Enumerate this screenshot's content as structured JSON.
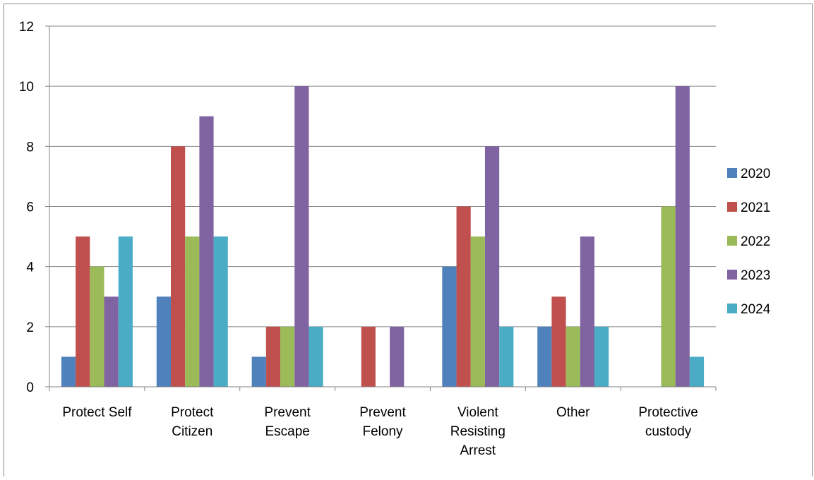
{
  "chart_data": {
    "type": "bar",
    "title": "",
    "xlabel": "",
    "ylabel": "",
    "categories": [
      [
        "Protect Self"
      ],
      [
        "Protect",
        "Citizen"
      ],
      [
        "Prevent",
        "Escape"
      ],
      [
        "Prevent",
        "Felony"
      ],
      [
        "Violent",
        "Resisting",
        "Arrest"
      ],
      [
        "Other"
      ],
      [
        "Protective",
        "custody"
      ]
    ],
    "series": [
      {
        "name": "2020",
        "color": "#4F81BD",
        "values": [
          1,
          3,
          1,
          0,
          4,
          2,
          0
        ]
      },
      {
        "name": "2021",
        "color": "#C0504D",
        "values": [
          5,
          8,
          2,
          2,
          6,
          3,
          0
        ]
      },
      {
        "name": "2022",
        "color": "#9BBB59",
        "values": [
          4,
          5,
          2,
          0,
          5,
          2,
          6
        ]
      },
      {
        "name": "2023",
        "color": "#8064A2",
        "values": [
          3,
          9,
          10,
          2,
          8,
          5,
          10
        ]
      },
      {
        "name": "2024",
        "color": "#4BACC6",
        "values": [
          5,
          5,
          2,
          0,
          2,
          2,
          1
        ]
      }
    ],
    "ylim": [
      0,
      12
    ],
    "yticks": [
      0,
      2,
      4,
      6,
      8,
      10,
      12
    ],
    "grid": true,
    "legend_position": "right"
  }
}
